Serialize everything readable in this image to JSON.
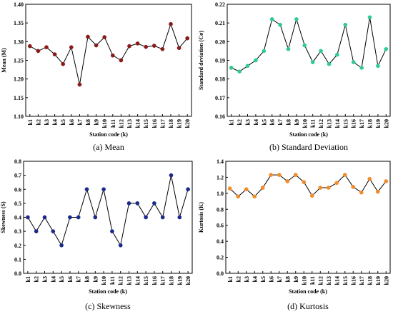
{
  "chart_data": [
    {
      "type": "line",
      "caption_prefix": "(a)",
      "caption_text": "Mean",
      "xlabel": "Station code (k)",
      "ylabel": "Mean (M)",
      "categories": [
        "k1",
        "k2",
        "k3",
        "k4",
        "k5",
        "k6",
        "k7",
        "k8",
        "k9",
        "k10",
        "k11",
        "k12",
        "k13",
        "k14",
        "k15",
        "k16",
        "k17",
        "k18",
        "k19",
        "k20"
      ],
      "values": [
        1.288,
        1.275,
        1.285,
        1.266,
        1.24,
        1.285,
        1.185,
        1.313,
        1.29,
        1.312,
        1.263,
        1.25,
        1.288,
        1.295,
        1.286,
        1.289,
        1.28,
        1.347,
        1.283,
        1.309
      ],
      "ylim": [
        1.1,
        1.4
      ],
      "yticks": [
        "1.10",
        "1.15",
        "1.20",
        "1.25",
        "1.30",
        "1.35",
        "1.40"
      ],
      "marker_color": "#8b1a1a"
    },
    {
      "type": "line",
      "caption_prefix": "(b)",
      "caption_text": "Standard Deviation",
      "xlabel": "Station code (k)",
      "ylabel": "Standard deviation (Cσ)",
      "categories": [
        "k1",
        "k2",
        "k3",
        "k4",
        "k5",
        "k6",
        "k7",
        "k8",
        "k9",
        "k10",
        "k11",
        "k12",
        "k13",
        "k14",
        "k15",
        "k16",
        "k17",
        "k18",
        "k19",
        "k20"
      ],
      "values": [
        0.186,
        0.184,
        0.187,
        0.19,
        0.195,
        0.212,
        0.209,
        0.196,
        0.212,
        0.198,
        0.189,
        0.195,
        0.188,
        0.193,
        0.209,
        0.189,
        0.186,
        0.213,
        0.187,
        0.196
      ],
      "ylim": [
        0.16,
        0.22
      ],
      "yticks": [
        "0.16",
        "0.17",
        "0.18",
        "0.19",
        "0.20",
        "0.21",
        "0.22"
      ],
      "marker_color": "#2ecc8f"
    },
    {
      "type": "line",
      "caption_prefix": "(c)",
      "caption_text": "Skewness",
      "xlabel": "Station code (k)",
      "ylabel": "Skewness (S)",
      "categories": [
        "k1",
        "k2",
        "k3",
        "k4",
        "k5",
        "k6",
        "k7",
        "k8",
        "k9",
        "k10",
        "k11",
        "k12",
        "k13",
        "k14",
        "k15",
        "k16",
        "k17",
        "k18",
        "k19",
        "k20"
      ],
      "values": [
        0.4,
        0.3,
        0.4,
        0.3,
        0.2,
        0.4,
        0.4,
        0.6,
        0.4,
        0.6,
        0.3,
        0.2,
        0.5,
        0.5,
        0.4,
        0.5,
        0.4,
        0.7,
        0.4,
        0.6
      ],
      "ylim": [
        0.0,
        0.8
      ],
      "yticks": [
        "0.0",
        "0.1",
        "0.2",
        "0.3",
        "0.4",
        "0.5",
        "0.6",
        "0.7",
        "0.8"
      ],
      "marker_color": "#1a2a8c"
    },
    {
      "type": "line",
      "caption_prefix": "(d)",
      "caption_text": "Kurtosis",
      "xlabel": "Station code (k)",
      "ylabel": "Kurtosis (K)",
      "categories": [
        "k1",
        "k2",
        "k3",
        "k4",
        "k5",
        "k6",
        "k7",
        "k8",
        "k9",
        "k10",
        "k11",
        "k12",
        "k13",
        "k14",
        "k15",
        "k16",
        "k17",
        "k18",
        "k19",
        "k20"
      ],
      "values": [
        1.06,
        0.96,
        1.05,
        0.96,
        1.07,
        1.23,
        1.23,
        1.15,
        1.23,
        1.14,
        0.97,
        1.07,
        1.07,
        1.13,
        1.23,
        1.08,
        1.01,
        1.18,
        1.02,
        1.15
      ],
      "ylim": [
        0.0,
        1.4
      ],
      "yticks": [
        "0.0",
        "0.2",
        "0.4",
        "0.6",
        "0.8",
        "1.0",
        "1.2",
        "1.4"
      ],
      "marker_color": "#f28c28"
    }
  ]
}
